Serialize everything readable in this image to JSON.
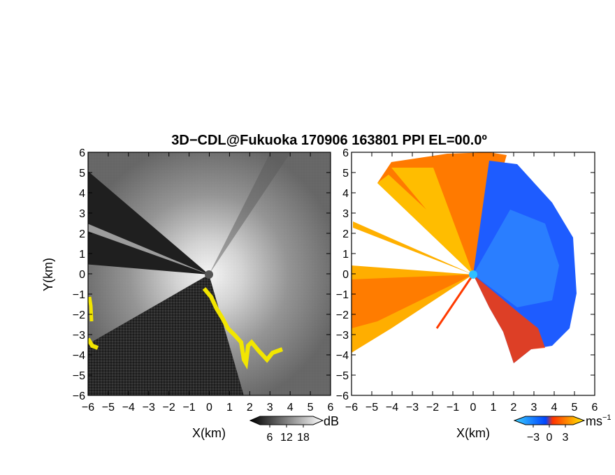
{
  "title": "3D−CDL@Fukuoka 170906 163801 PPI EL=00.0º",
  "chart_data": [
    {
      "type": "heatmap",
      "panel": "left",
      "quantity_unit": "dB",
      "xlabel": "X(km)",
      "ylabel": "Y(km)",
      "xlim": [
        -6,
        6
      ],
      "ylim": [
        -6,
        6
      ],
      "xticks": [
        "−6",
        "−5",
        "−4",
        "−3",
        "−2",
        "−1",
        "0",
        "1",
        "2",
        "3",
        "4",
        "5",
        "6"
      ],
      "yticks": [
        "6",
        "5",
        "4",
        "3",
        "2",
        "1",
        "0",
        "−1",
        "−2",
        "−3",
        "−4",
        "−5",
        "−6"
      ],
      "colorbar": {
        "unit": "dB",
        "ticks": [
          "6",
          "12",
          "18"
        ],
        "range": [
          0,
          24
        ],
        "colors": [
          "#000000",
          "#ffffff"
        ],
        "highlight_color": "#f2e600"
      }
    },
    {
      "type": "heatmap",
      "panel": "right",
      "quantity_unit": "ms⁻¹",
      "xlabel": "X(km)",
      "ylabel": "",
      "xlim": [
        -6,
        6
      ],
      "ylim": [
        -6,
        6
      ],
      "xticks": [
        "−6",
        "−5",
        "−4",
        "−3",
        "−2",
        "−1",
        "0",
        "1",
        "2",
        "3",
        "4",
        "5",
        "6"
      ],
      "yticks": [
        "6",
        "5",
        "4",
        "3",
        "2",
        "1",
        "0",
        "−1",
        "−2",
        "−3",
        "−4",
        "−5",
        "−6"
      ],
      "colorbar": {
        "unit": "ms",
        "unit_exponent": "−1",
        "ticks": [
          "−3",
          "0",
          "3"
        ],
        "range": [
          -6,
          6
        ],
        "colors": [
          "#3ad0ff",
          "#0044ff",
          "#ff3300",
          "#ffee00"
        ]
      }
    }
  ]
}
